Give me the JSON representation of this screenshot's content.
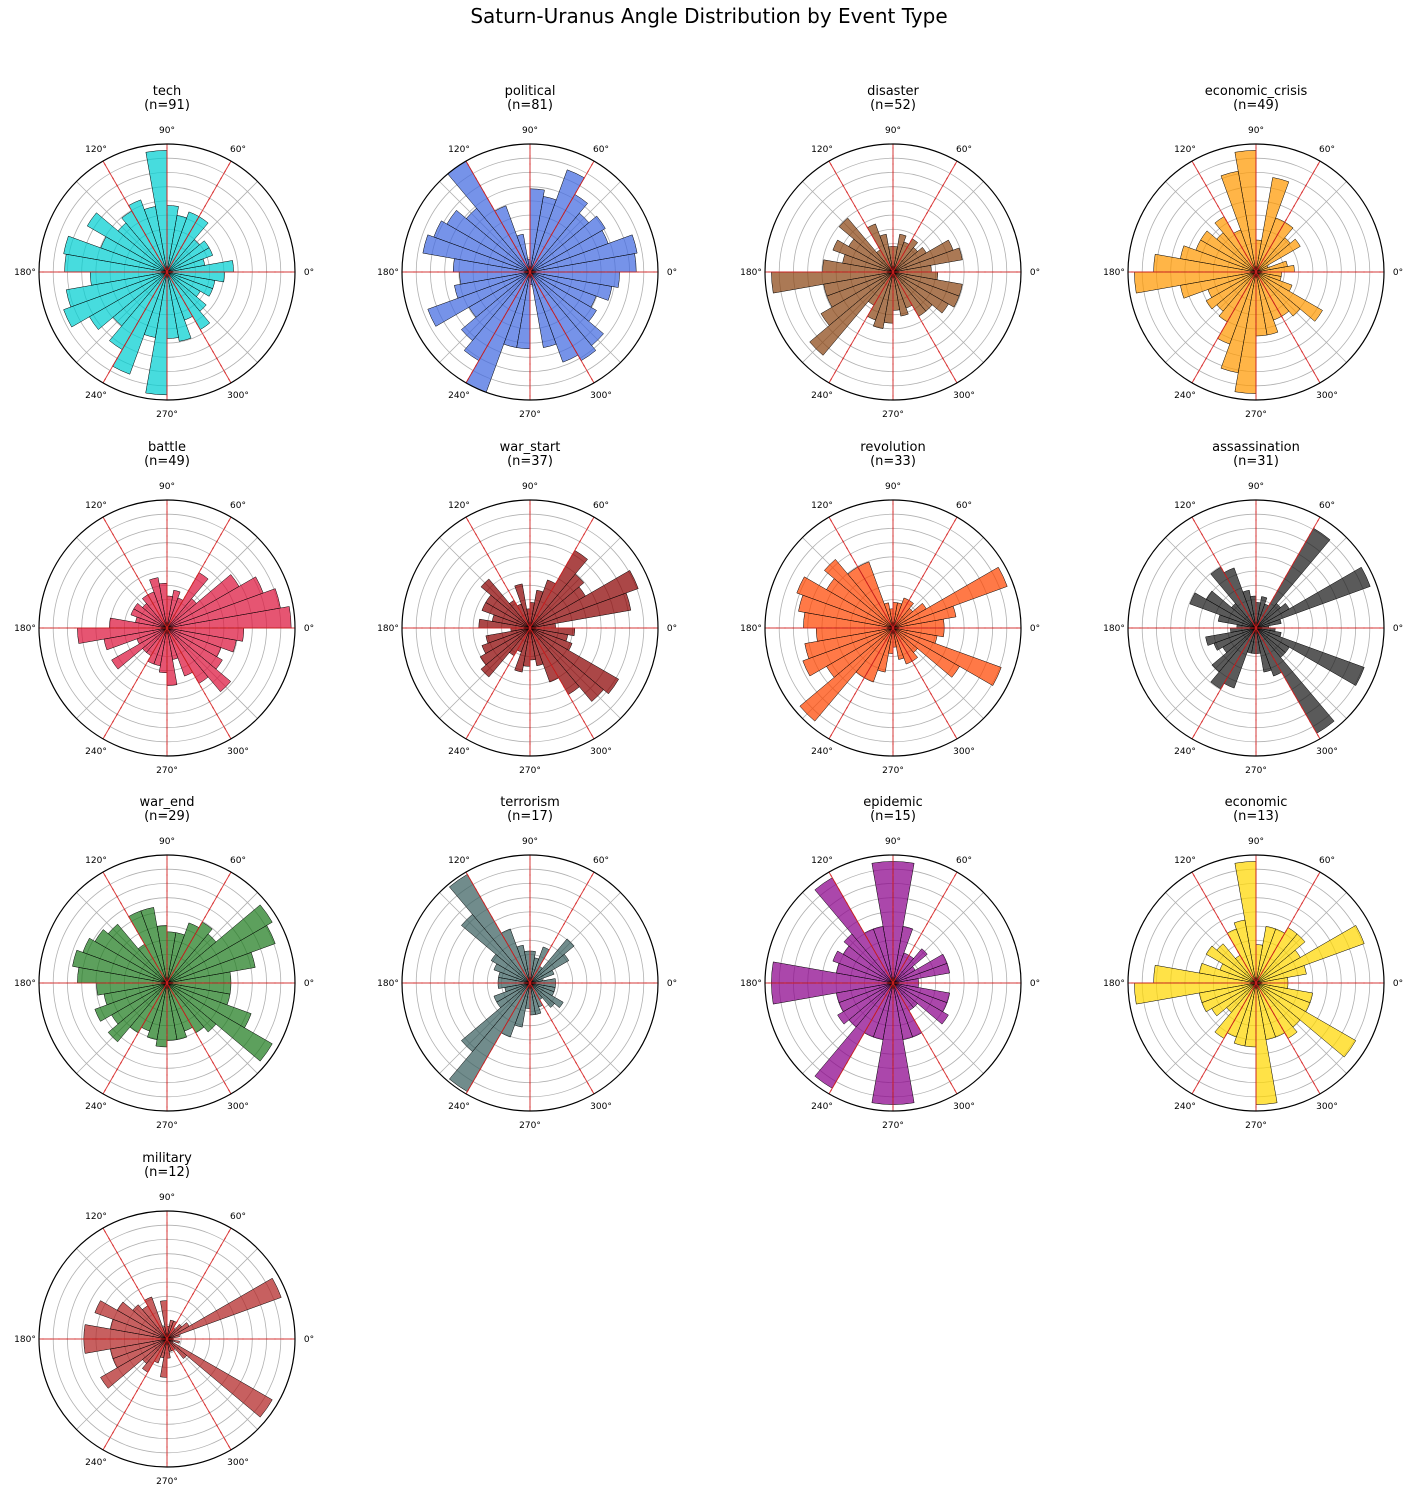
{
  "figure_title": "Saturn-Uranus Angle Distribution by Event Type",
  "tick_labels": [
    "0°",
    "60°",
    "90°",
    "120°",
    "180°",
    "240°",
    "270°",
    "300°"
  ],
  "aspect_angles_deg": [
    0,
    60,
    90,
    120,
    180,
    240,
    270,
    300
  ],
  "chart_data": [
    {
      "type": "polar-bar",
      "title": "tech",
      "subtitle": "(n=91)",
      "color": "#00CED1",
      "bin_width_deg": 10,
      "bin_start_deg": [
        0,
        10,
        20,
        30,
        40,
        50,
        60,
        70,
        80,
        90,
        100,
        110,
        120,
        130,
        140,
        150,
        160,
        170,
        180,
        190,
        200,
        210,
        220,
        230,
        240,
        250,
        260,
        270,
        280,
        290,
        300,
        310,
        320,
        330,
        340,
        350
      ],
      "values": [
        0.52,
        0.3,
        0.38,
        0.38,
        0.33,
        0.5,
        0.5,
        0.45,
        0.52,
        0.95,
        0.52,
        0.6,
        0.55,
        0.5,
        0.72,
        0.55,
        0.82,
        0.8,
        0.6,
        0.8,
        0.86,
        0.7,
        0.55,
        0.7,
        0.85,
        0.52,
        0.96,
        0.52,
        0.55,
        0.4,
        0.52,
        0.4,
        0.3,
        0.38,
        0.38,
        0.45
      ]
    },
    {
      "type": "polar-bar",
      "title": "political",
      "subtitle": "(n=81)",
      "color": "#4169E1",
      "bin_width_deg": 10,
      "bin_start_deg": [
        0,
        10,
        20,
        30,
        40,
        50,
        60,
        70,
        80,
        90,
        100,
        110,
        120,
        130,
        140,
        150,
        160,
        170,
        180,
        190,
        200,
        210,
        220,
        230,
        240,
        250,
        260,
        270,
        280,
        290,
        300,
        310,
        320,
        330,
        340,
        350
      ],
      "values": [
        0.83,
        0.85,
        0.65,
        0.68,
        0.6,
        0.7,
        0.85,
        0.6,
        0.65,
        0.1,
        0.3,
        0.55,
        1.0,
        0.65,
        0.75,
        0.8,
        0.85,
        0.6,
        0.55,
        0.6,
        0.85,
        0.55,
        0.7,
        0.8,
        1.0,
        0.6,
        0.6,
        0.1,
        0.6,
        0.75,
        0.8,
        0.75,
        0.6,
        0.55,
        0.65,
        0.7
      ]
    },
    {
      "type": "polar-bar",
      "title": "disaster",
      "subtitle": "(n=52)",
      "color": "#8B4513",
      "bin_width_deg": 10,
      "bin_start_deg": [
        0,
        10,
        20,
        30,
        40,
        50,
        60,
        70,
        80,
        90,
        100,
        110,
        120,
        130,
        140,
        150,
        160,
        170,
        180,
        190,
        200,
        210,
        220,
        230,
        240,
        250,
        260,
        270,
        280,
        290,
        300,
        310,
        320,
        330,
        340,
        350
      ],
      "values": [
        0.3,
        0.55,
        0.5,
        0.3,
        0.25,
        0.3,
        0.25,
        0.3,
        0.2,
        0.2,
        0.3,
        0.4,
        0.2,
        0.55,
        0.4,
        0.5,
        0.4,
        0.55,
        0.95,
        0.55,
        0.55,
        0.65,
        0.85,
        0.3,
        0.4,
        0.45,
        0.4,
        0.3,
        0.35,
        0.3,
        0.4,
        0.4,
        0.5,
        0.55,
        0.55,
        0.35
      ]
    },
    {
      "type": "polar-bar",
      "title": "economic_crisis",
      "subtitle": "(n=49)",
      "color": "#FF9900",
      "bin_width_deg": 10,
      "bin_start_deg": [
        0,
        10,
        20,
        30,
        40,
        50,
        60,
        70,
        80,
        90,
        100,
        110,
        120,
        130,
        140,
        150,
        160,
        170,
        180,
        190,
        200,
        210,
        220,
        230,
        240,
        250,
        260,
        270,
        280,
        290,
        300,
        310,
        320,
        330,
        340,
        350
      ],
      "values": [
        0.3,
        0.25,
        0.1,
        0.4,
        0.35,
        0.45,
        0.45,
        0.75,
        0.25,
        0.95,
        0.8,
        0.35,
        0.5,
        0.4,
        0.5,
        0.5,
        0.6,
        0.8,
        0.95,
        0.6,
        0.4,
        0.45,
        0.4,
        0.45,
        0.6,
        0.8,
        0.95,
        0.5,
        0.5,
        0.4,
        0.4,
        0.45,
        0.6,
        0.3,
        0.2,
        0.2
      ]
    },
    {
      "type": "polar-bar",
      "title": "battle",
      "subtitle": "(n=49)",
      "color": "#DC143C",
      "bin_width_deg": 10,
      "bin_start_deg": [
        0,
        10,
        20,
        30,
        40,
        50,
        60,
        70,
        80,
        90,
        100,
        110,
        120,
        130,
        140,
        150,
        160,
        170,
        180,
        190,
        200,
        210,
        220,
        230,
        240,
        250,
        260,
        270,
        280,
        290,
        300,
        310,
        320,
        330,
        340,
        350
      ],
      "values": [
        0.97,
        0.9,
        0.8,
        0.65,
        0.3,
        0.5,
        0.25,
        0.3,
        0.25,
        0.35,
        0.4,
        0.3,
        0.3,
        0.25,
        0.3,
        0.3,
        0.25,
        0.45,
        0.7,
        0.5,
        0.25,
        0.5,
        0.25,
        0.25,
        0.3,
        0.3,
        0.35,
        0.45,
        0.25,
        0.4,
        0.5,
        0.65,
        0.5,
        0.45,
        0.55,
        0.6
      ]
    },
    {
      "type": "polar-bar",
      "title": "war_start",
      "subtitle": "(n=37)",
      "color": "#8B0000",
      "bin_width_deg": 10,
      "bin_start_deg": [
        0,
        10,
        20,
        30,
        40,
        50,
        60,
        70,
        80,
        90,
        100,
        110,
        120,
        130,
        140,
        150,
        160,
        170,
        180,
        190,
        200,
        210,
        220,
        230,
        240,
        250,
        260,
        270,
        280,
        290,
        300,
        310,
        320,
        330,
        340,
        350
      ],
      "values": [
        0.2,
        0.8,
        0.9,
        0.5,
        0.55,
        0.7,
        0.4,
        0.3,
        0.2,
        0.15,
        0.35,
        0.2,
        0.25,
        0.5,
        0.4,
        0.4,
        0.3,
        0.4,
        0.15,
        0.35,
        0.4,
        0.45,
        0.5,
        0.25,
        0.2,
        0.35,
        0.3,
        0.25,
        0.3,
        0.45,
        0.6,
        0.75,
        0.8,
        0.35,
        0.3,
        0.35
      ]
    },
    {
      "type": "polar-bar",
      "title": "revolution",
      "subtitle": "(n=33)",
      "color": "#FF4500",
      "bin_width_deg": 10,
      "bin_start_deg": [
        0,
        10,
        20,
        30,
        40,
        50,
        60,
        70,
        80,
        90,
        100,
        110,
        120,
        130,
        140,
        150,
        160,
        170,
        180,
        190,
        200,
        210,
        220,
        230,
        240,
        250,
        260,
        270,
        280,
        290,
        300,
        310,
        320,
        330,
        340,
        350
      ],
      "values": [
        0.4,
        0.5,
        0.95,
        0.3,
        0.2,
        0.25,
        0.25,
        0.2,
        0.2,
        0.15,
        0.2,
        0.55,
        0.55,
        0.7,
        0.6,
        0.8,
        0.75,
        0.7,
        0.6,
        0.7,
        0.75,
        0.6,
        0.95,
        0.45,
        0.45,
        0.35,
        0.2,
        0.15,
        0.25,
        0.3,
        0.3,
        0.25,
        0.6,
        0.9,
        0.35,
        0.4
      ]
    },
    {
      "type": "polar-bar",
      "title": "assassination",
      "subtitle": "(n=31)",
      "color": "#1A1A1A",
      "bin_width_deg": 10,
      "bin_start_deg": [
        0,
        10,
        20,
        30,
        40,
        50,
        60,
        70,
        80,
        90,
        100,
        110,
        120,
        130,
        140,
        150,
        160,
        170,
        180,
        190,
        200,
        210,
        220,
        230,
        240,
        250,
        260,
        270,
        280,
        290,
        300,
        310,
        320,
        330,
        340,
        350
      ],
      "values": [
        0.1,
        0.2,
        0.95,
        0.3,
        0.25,
        0.9,
        0.2,
        0.25,
        0.2,
        0.25,
        0.3,
        0.5,
        0.55,
        0.25,
        0.45,
        0.55,
        0.3,
        0.15,
        0.2,
        0.4,
        0.35,
        0.3,
        0.45,
        0.55,
        0.5,
        0.2,
        0.2,
        0.2,
        0.35,
        0.4,
        0.95,
        0.3,
        0.3,
        0.9,
        0.2,
        0.15
      ]
    },
    {
      "type": "polar-bar",
      "title": "war_end",
      "subtitle": "(n=29)",
      "color": "#1E7B1E",
      "bin_width_deg": 10,
      "bin_start_deg": [
        0,
        10,
        20,
        30,
        40,
        50,
        60,
        70,
        80,
        90,
        100,
        110,
        120,
        130,
        140,
        150,
        160,
        170,
        180,
        190,
        200,
        210,
        220,
        230,
        240,
        250,
        260,
        270,
        280,
        290,
        300,
        310,
        320,
        330,
        340,
        350
      ],
      "values": [
        0.5,
        0.7,
        0.9,
        0.95,
        0.5,
        0.55,
        0.5,
        0.4,
        0.4,
        0.45,
        0.6,
        0.6,
        0.35,
        0.6,
        0.65,
        0.7,
        0.75,
        0.7,
        0.55,
        0.5,
        0.6,
        0.5,
        0.6,
        0.45,
        0.4,
        0.45,
        0.5,
        0.45,
        0.45,
        0.4,
        0.45,
        0.5,
        0.95,
        0.7,
        0.5,
        0.5
      ]
    },
    {
      "type": "polar-bar",
      "title": "terrorism",
      "subtitle": "(n=17)",
      "color": "#3A5F5F",
      "bin_width_deg": 10,
      "bin_start_deg": [
        0,
        10,
        20,
        30,
        40,
        50,
        60,
        70,
        80,
        90,
        100,
        110,
        120,
        130,
        140,
        150,
        160,
        170,
        180,
        190,
        200,
        210,
        220,
        230,
        240,
        250,
        260,
        270,
        280,
        290,
        300,
        310,
        320,
        330,
        340,
        350
      ],
      "values": [
        0.2,
        0.1,
        0.2,
        0.35,
        0.45,
        0.15,
        0.3,
        0.2,
        0.25,
        0.25,
        0.3,
        0.45,
        0.98,
        0.7,
        0.35,
        0.3,
        0.25,
        0.25,
        0.25,
        0.2,
        0.3,
        0.3,
        0.7,
        0.98,
        0.45,
        0.35,
        0.2,
        0.25,
        0.25,
        0.2,
        0.15,
        0.25,
        0.3,
        0.2,
        0.2,
        0.2
      ]
    },
    {
      "type": "polar-bar",
      "title": "epidemic",
      "subtitle": "(n=15)",
      "color": "#8B008B",
      "bin_width_deg": 10,
      "bin_start_deg": [
        0,
        10,
        20,
        30,
        40,
        50,
        60,
        70,
        80,
        90,
        100,
        110,
        120,
        130,
        140,
        150,
        160,
        170,
        180,
        190,
        200,
        210,
        220,
        230,
        240,
        250,
        260,
        270,
        280,
        290,
        300,
        310,
        320,
        330,
        340,
        350
      ],
      "values": [
        0.2,
        0.45,
        0.45,
        0.2,
        0.35,
        0.25,
        0.25,
        0.45,
        0.95,
        0.95,
        0.45,
        0.45,
        0.95,
        0.5,
        0.45,
        0.5,
        0.45,
        0.95,
        0.95,
        0.45,
        0.45,
        0.5,
        0.45,
        0.95,
        0.45,
        0.45,
        0.95,
        0.95,
        0.45,
        0.45,
        0.25,
        0.25,
        0.5,
        0.45,
        0.45,
        0.2
      ]
    },
    {
      "type": "polar-bar",
      "title": "economic",
      "subtitle": "(n=13)",
      "color": "#FFD700",
      "bin_width_deg": 10,
      "bin_start_deg": [
        0,
        10,
        20,
        30,
        40,
        50,
        60,
        70,
        80,
        90,
        100,
        110,
        120,
        130,
        140,
        150,
        160,
        170,
        180,
        190,
        200,
        210,
        220,
        230,
        240,
        250,
        260,
        270,
        280,
        290,
        300,
        310,
        320,
        330,
        340,
        350
      ],
      "values": [
        0.25,
        0.4,
        0.9,
        0.4,
        0.5,
        0.5,
        0.45,
        0.45,
        0.3,
        0.95,
        0.5,
        0.45,
        0.25,
        0.4,
        0.45,
        0.3,
        0.45,
        0.8,
        0.95,
        0.45,
        0.45,
        0.4,
        0.3,
        0.5,
        0.45,
        0.5,
        0.5,
        0.95,
        0.45,
        0.45,
        0.5,
        0.45,
        0.9,
        0.45,
        0.45,
        0.25
      ]
    },
    {
      "type": "polar-bar",
      "title": "military",
      "subtitle": "(n=12)",
      "color": "#B22222",
      "bin_width_deg": 10,
      "bin_start_deg": [
        0,
        10,
        20,
        30,
        40,
        50,
        60,
        70,
        80,
        90,
        100,
        110,
        120,
        130,
        140,
        150,
        160,
        170,
        180,
        190,
        200,
        210,
        220,
        230,
        240,
        250,
        260,
        270,
        280,
        290,
        300,
        310,
        320,
        330,
        340,
        350
      ],
      "values": [
        0.05,
        0.1,
        0.95,
        0.2,
        0.15,
        0.1,
        0.15,
        0.15,
        0.1,
        0.3,
        0.1,
        0.35,
        0.3,
        0.35,
        0.45,
        0.6,
        0.45,
        0.65,
        0.65,
        0.45,
        0.45,
        0.6,
        0.25,
        0.3,
        0.2,
        0.15,
        0.3,
        0.15,
        0.1,
        0.1,
        0.1,
        0.2,
        0.95,
        0.05,
        0.1,
        0.05
      ]
    }
  ]
}
